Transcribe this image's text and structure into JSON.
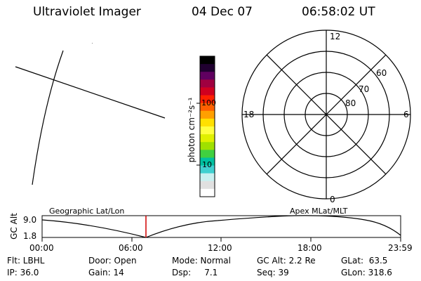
{
  "header": {
    "title": "Ultraviolet Imager",
    "date": "04 Dec 07",
    "time": "06:58:02 UT"
  },
  "colorbar": {
    "label": "photon cm⁻²s⁻¹",
    "tick_labels": [
      "100",
      "10"
    ],
    "colors": [
      "#ffffff",
      "#e0e0e0",
      "#c8f0f0",
      "#40d0d0",
      "#00c0a0",
      "#40d040",
      "#a0e000",
      "#e0f000",
      "#ffff40",
      "#ffe000",
      "#ffa000",
      "#ff6000",
      "#ff2000",
      "#d00020",
      "#a00040",
      "#600060",
      "#200030",
      "#000000"
    ]
  },
  "polar": {
    "mlt_labels": [
      "12",
      "18",
      "6",
      "0"
    ],
    "lat_labels": [
      "60",
      "70",
      "80"
    ]
  },
  "timeline": {
    "left_title": "Geographic Lat/Lon",
    "right_title": "Apex MLat/MLT",
    "yaxis_label": "GC Alt",
    "yticks": [
      "9.0",
      "1.8"
    ],
    "xticks": [
      "00:00",
      "06:00",
      "12:00",
      "18:00",
      "23:59"
    ],
    "cursor_color": "#d00000"
  },
  "info": {
    "row1": {
      "flt": "Flt: LBHL",
      "door": "Door: Open",
      "mode": "Mode: Normal",
      "gcalt": "GC Alt: 2.2 Re",
      "glat": "GLat:  63.5"
    },
    "row2": {
      "ip": "IP: 36.0",
      "gain": "Gain: 14",
      "dsp": "Dsp:     7.1",
      "seq": "Seq: 39",
      "glon": "GLon: 318.6"
    }
  }
}
